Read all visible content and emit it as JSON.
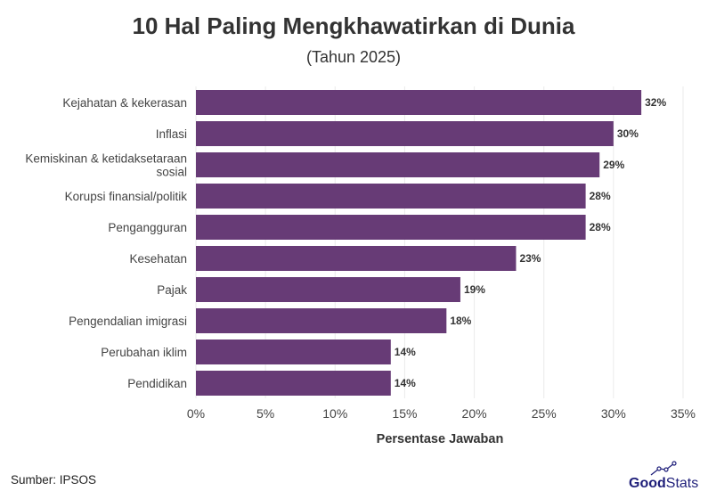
{
  "chart_data": {
    "type": "bar",
    "orientation": "horizontal",
    "title": "10 Hal Paling Mengkhawatirkan di Dunia",
    "subtitle": "(Tahun 2025)",
    "categories": [
      "Kejahatan & kekerasan",
      "Inflasi",
      "Kemiskinan & ketidaksetaraan sosial",
      "Korupsi finansial/politik",
      "Pengangguran",
      "Kesehatan",
      "Pajak",
      "Pengendalian imigrasi",
      "Perubahan iklim",
      "Pendidikan"
    ],
    "category_lines": [
      [
        "Kejahatan & kekerasan"
      ],
      [
        "Inflasi"
      ],
      [
        "Kemiskinan & ketidaksetaraan",
        "sosial"
      ],
      [
        "Korupsi finansial/politik"
      ],
      [
        "Pengangguran"
      ],
      [
        "Kesehatan"
      ],
      [
        "Pajak"
      ],
      [
        "Pengendalian imigrasi"
      ],
      [
        "Perubahan iklim"
      ],
      [
        "Pendidikan"
      ]
    ],
    "values": [
      32,
      30,
      29,
      28,
      28,
      23,
      19,
      18,
      14,
      14
    ],
    "data_labels": [
      "32%",
      "30%",
      "29%",
      "28%",
      "28%",
      "23%",
      "19%",
      "18%",
      "14%",
      "14%"
    ],
    "xlabel": "Persentase Jawaban",
    "ylabel": "",
    "xlim": [
      0,
      35
    ],
    "xticks": [
      0,
      5,
      10,
      15,
      20,
      25,
      30,
      35
    ],
    "xtick_labels": [
      "0%",
      "5%",
      "10%",
      "15%",
      "20%",
      "25%",
      "30%",
      "35%"
    ],
    "grid": true,
    "bar_color": "#673b76"
  },
  "footer": {
    "source": "Sumber: IPSOS",
    "logo_text": "GoodStats",
    "logo_color": "#1f1f7a"
  }
}
